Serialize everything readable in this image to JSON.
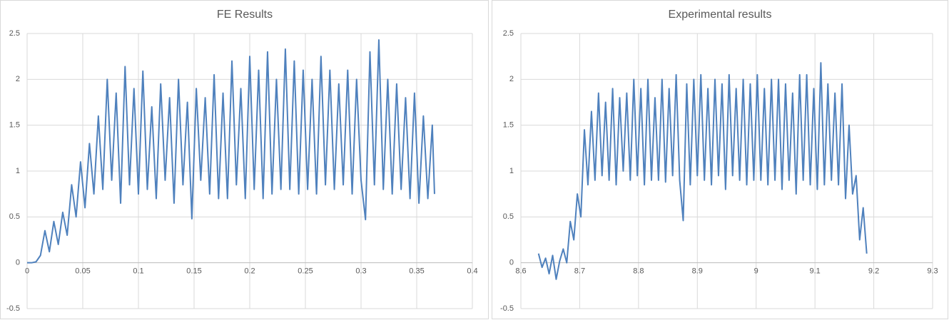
{
  "chart_data": [
    {
      "type": "line",
      "title": "FE Results",
      "color": "#4f81bd",
      "grid": true,
      "x": [
        0,
        0.004,
        0.008,
        0.012,
        0.016,
        0.02,
        0.024,
        0.028,
        0.032,
        0.036,
        0.04,
        0.044,
        0.048,
        0.052,
        0.056,
        0.06,
        0.064,
        0.068,
        0.072,
        0.076,
        0.08,
        0.084,
        0.088,
        0.092,
        0.096,
        0.1,
        0.104,
        0.108,
        0.112,
        0.116,
        0.12,
        0.124,
        0.128,
        0.132,
        0.136,
        0.14,
        0.144,
        0.148,
        0.152,
        0.156,
        0.16,
        0.164,
        0.168,
        0.172,
        0.176,
        0.18,
        0.184,
        0.188,
        0.192,
        0.196,
        0.2,
        0.204,
        0.208,
        0.212,
        0.216,
        0.22,
        0.224,
        0.228,
        0.232,
        0.236,
        0.24,
        0.244,
        0.248,
        0.252,
        0.256,
        0.26,
        0.264,
        0.268,
        0.272,
        0.276,
        0.28,
        0.284,
        0.288,
        0.292,
        0.296,
        0.3,
        0.304,
        0.308,
        0.312,
        0.316,
        0.32,
        0.324,
        0.328,
        0.332,
        0.336,
        0.34,
        0.344,
        0.348,
        0.352,
        0.356,
        0.36,
        0.364,
        0.366
      ],
      "values": [
        0,
        0,
        0.01,
        0.08,
        0.35,
        0.12,
        0.45,
        0.2,
        0.55,
        0.3,
        0.85,
        0.5,
        1.1,
        0.6,
        1.3,
        0.75,
        1.6,
        0.8,
        2.0,
        0.9,
        1.85,
        0.65,
        2.14,
        0.85,
        1.9,
        0.75,
        2.09,
        0.8,
        1.7,
        0.7,
        1.95,
        0.9,
        1.8,
        0.65,
        2.0,
        0.85,
        1.75,
        0.48,
        1.9,
        0.9,
        1.8,
        0.75,
        2.05,
        0.7,
        1.85,
        0.7,
        2.2,
        0.85,
        1.9,
        0.7,
        2.25,
        0.8,
        2.1,
        0.7,
        2.3,
        0.75,
        2.0,
        0.8,
        2.33,
        0.8,
        2.2,
        0.75,
        2.1,
        0.8,
        2.0,
        0.75,
        2.25,
        0.85,
        2.1,
        0.8,
        1.95,
        0.85,
        2.1,
        0.75,
        2.0,
        0.9,
        0.47,
        2.3,
        0.85,
        2.43,
        0.8,
        2.0,
        0.75,
        1.95,
        0.8,
        1.8,
        0.7,
        1.85,
        0.65,
        1.6,
        0.7,
        1.5,
        0.75
      ],
      "xlim": [
        0,
        0.4
      ],
      "xticks": [
        0,
        0.05,
        0.1,
        0.15,
        0.2,
        0.25,
        0.3,
        0.35,
        0.4
      ],
      "ylim": [
        -0.5,
        2.5
      ],
      "yticks": [
        -0.5,
        0,
        0.5,
        1,
        1.5,
        2,
        2.5
      ]
    },
    {
      "type": "line",
      "title": "Experimental results",
      "color": "#4f81bd",
      "grid": true,
      "x": [
        8.63,
        8.636,
        8.642,
        8.648,
        8.654,
        8.66,
        8.666,
        8.672,
        8.678,
        8.684,
        8.69,
        8.696,
        8.702,
        8.708,
        8.714,
        8.72,
        8.726,
        8.732,
        8.738,
        8.744,
        8.75,
        8.756,
        8.762,
        8.768,
        8.774,
        8.78,
        8.786,
        8.792,
        8.798,
        8.804,
        8.81,
        8.816,
        8.822,
        8.828,
        8.834,
        8.84,
        8.846,
        8.852,
        8.858,
        8.864,
        8.87,
        8.876,
        8.882,
        8.888,
        8.894,
        8.9,
        8.906,
        8.912,
        8.918,
        8.924,
        8.93,
        8.936,
        8.942,
        8.948,
        8.954,
        8.96,
        8.966,
        8.972,
        8.978,
        8.984,
        8.99,
        8.996,
        9.002,
        9.008,
        9.014,
        9.02,
        9.026,
        9.032,
        9.038,
        9.044,
        9.05,
        9.056,
        9.062,
        9.068,
        9.074,
        9.08,
        9.086,
        9.092,
        9.098,
        9.104,
        9.11,
        9.116,
        9.122,
        9.128,
        9.134,
        9.14,
        9.146,
        9.152,
        9.158,
        9.164,
        9.17,
        9.176,
        9.182,
        9.188
      ],
      "values": [
        0.1,
        -0.05,
        0.05,
        -0.12,
        0.08,
        -0.18,
        0.02,
        0.15,
        0,
        0.45,
        0.25,
        0.75,
        0.5,
        1.45,
        0.85,
        1.65,
        0.9,
        1.85,
        0.95,
        1.75,
        0.9,
        1.9,
        0.85,
        1.8,
        1.0,
        1.85,
        0.9,
        2.0,
        0.95,
        1.9,
        0.85,
        2.0,
        0.9,
        1.8,
        0.9,
        2.0,
        0.88,
        1.9,
        0.95,
        2.05,
        0.9,
        0.46,
        1.95,
        0.85,
        2.0,
        0.95,
        2.05,
        0.9,
        1.9,
        0.85,
        2.0,
        0.95,
        1.95,
        0.8,
        2.05,
        0.95,
        1.9,
        0.9,
        2.0,
        0.85,
        1.95,
        0.9,
        2.05,
        0.9,
        1.9,
        0.85,
        2.0,
        0.9,
        2.0,
        0.8,
        1.95,
        0.9,
        1.85,
        0.75,
        2.05,
        0.9,
        2.05,
        0.85,
        1.9,
        0.8,
        2.18,
        0.85,
        1.95,
        0.9,
        1.85,
        0.85,
        1.95,
        0.7,
        1.5,
        0.75,
        0.95,
        0.25,
        0.6,
        0.1
      ],
      "xlim": [
        8.6,
        9.3
      ],
      "xticks": [
        8.6,
        8.7,
        8.8,
        8.9,
        9,
        9.1,
        9.2,
        9.3
      ],
      "ylim": [
        -0.5,
        2.5
      ],
      "yticks": [
        -0.5,
        0,
        0.5,
        1,
        1.5,
        2,
        2.5
      ]
    }
  ]
}
